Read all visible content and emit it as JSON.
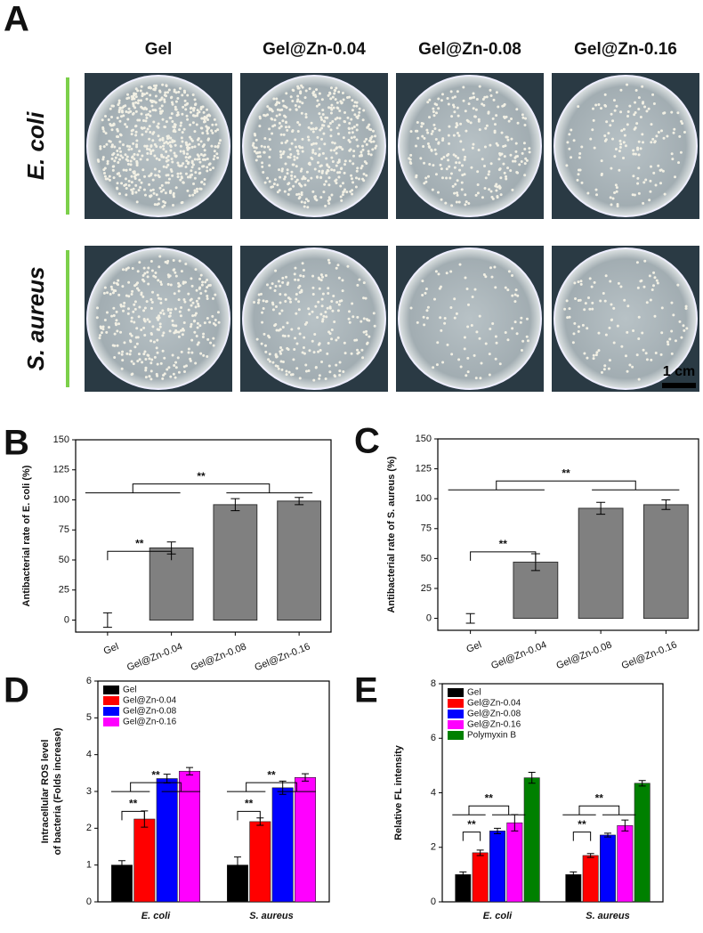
{
  "panel_a": {
    "label": "A",
    "columns": [
      "Gel",
      "Gel@Zn-0.04",
      "Gel@Zn-0.08",
      "Gel@Zn-0.16"
    ],
    "rows": [
      "E. coli",
      "S. aureus"
    ],
    "scale_bar": "1 cm"
  },
  "chart_data": [
    {
      "type": "bar",
      "panel_label": "B",
      "ylabel": [
        "Antibacterial rate of E. coli (%)"
      ],
      "categories": [
        "Gel",
        "Gel@Zn-0.04",
        "Gel@Zn-0.08",
        "Gel@Zn-0.16"
      ],
      "values": [
        0,
        60,
        96,
        99
      ],
      "errors": [
        6,
        5,
        5,
        3
      ],
      "color": "#808080",
      "ylim": [
        -10,
        150
      ],
      "yticks": [
        0,
        25,
        50,
        75,
        100,
        125,
        150
      ],
      "annotations": [
        "**",
        "**"
      ]
    },
    {
      "type": "bar",
      "panel_label": "C",
      "ylabel": [
        "Antibacterial rate of S. aureus (%)"
      ],
      "categories": [
        "Gel",
        "Gel@Zn-0.04",
        "Gel@Zn-0.08",
        "Gel@Zn-0.16"
      ],
      "values": [
        0,
        47,
        92,
        95
      ],
      "errors": [
        4,
        7,
        5,
        4
      ],
      "color": "#808080",
      "ylim": [
        -10,
        150
      ],
      "yticks": [
        0,
        25,
        50,
        75,
        100,
        125,
        150
      ],
      "annotations": [
        "**",
        "**"
      ]
    },
    {
      "type": "grouped_bar",
      "panel_label": "D",
      "ylabel": [
        "Intracellular ROS level",
        "of bacteria (Folds increase)"
      ],
      "categories": [
        "E. coli",
        "S. aureus"
      ],
      "series": [
        {
          "name": "Gel",
          "color": "#000000",
          "values": [
            1.0,
            1.0
          ],
          "errors": [
            0.12,
            0.22
          ]
        },
        {
          "name": "Gel@Zn-0.04",
          "color": "#ff0000",
          "values": [
            2.25,
            2.18
          ],
          "errors": [
            0.22,
            0.1
          ]
        },
        {
          "name": "Gel@Zn-0.08",
          "color": "#0000ff",
          "values": [
            3.35,
            3.1
          ],
          "errors": [
            0.12,
            0.18
          ]
        },
        {
          "name": "Gel@Zn-0.16",
          "color": "#ff00ff",
          "values": [
            3.55,
            3.38
          ],
          "errors": [
            0.1,
            0.1
          ]
        }
      ],
      "ylim": [
        0,
        6
      ],
      "yticks": [
        0,
        1,
        2,
        3,
        4,
        5,
        6
      ],
      "annotations": [
        "**",
        "**",
        "**",
        "**"
      ]
    },
    {
      "type": "grouped_bar",
      "panel_label": "E",
      "ylabel": [
        "Relative FL intensity"
      ],
      "categories": [
        "E. coli",
        "S. aureus"
      ],
      "series": [
        {
          "name": "Gel",
          "color": "#000000",
          "values": [
            1.0,
            1.0
          ],
          "errors": [
            0.1,
            0.1
          ]
        },
        {
          "name": "Gel@Zn-0.04",
          "color": "#ff0000",
          "values": [
            1.8,
            1.7
          ],
          "errors": [
            0.1,
            0.07
          ]
        },
        {
          "name": "Gel@Zn-0.08",
          "color": "#0000ff",
          "values": [
            2.6,
            2.45
          ],
          "errors": [
            0.1,
            0.07
          ]
        },
        {
          "name": "Gel@Zn-0.16",
          "color": "#ff00ff",
          "values": [
            2.9,
            2.8
          ],
          "errors": [
            0.3,
            0.2
          ]
        },
        {
          "name": "Polymyxin B",
          "color": "#008000",
          "values": [
            4.55,
            4.35
          ],
          "errors": [
            0.2,
            0.1
          ]
        }
      ],
      "ylim": [
        0,
        8
      ],
      "yticks": [
        0,
        2,
        4,
        6,
        8
      ],
      "annotations": [
        "**",
        "**",
        "**",
        "**"
      ]
    }
  ]
}
